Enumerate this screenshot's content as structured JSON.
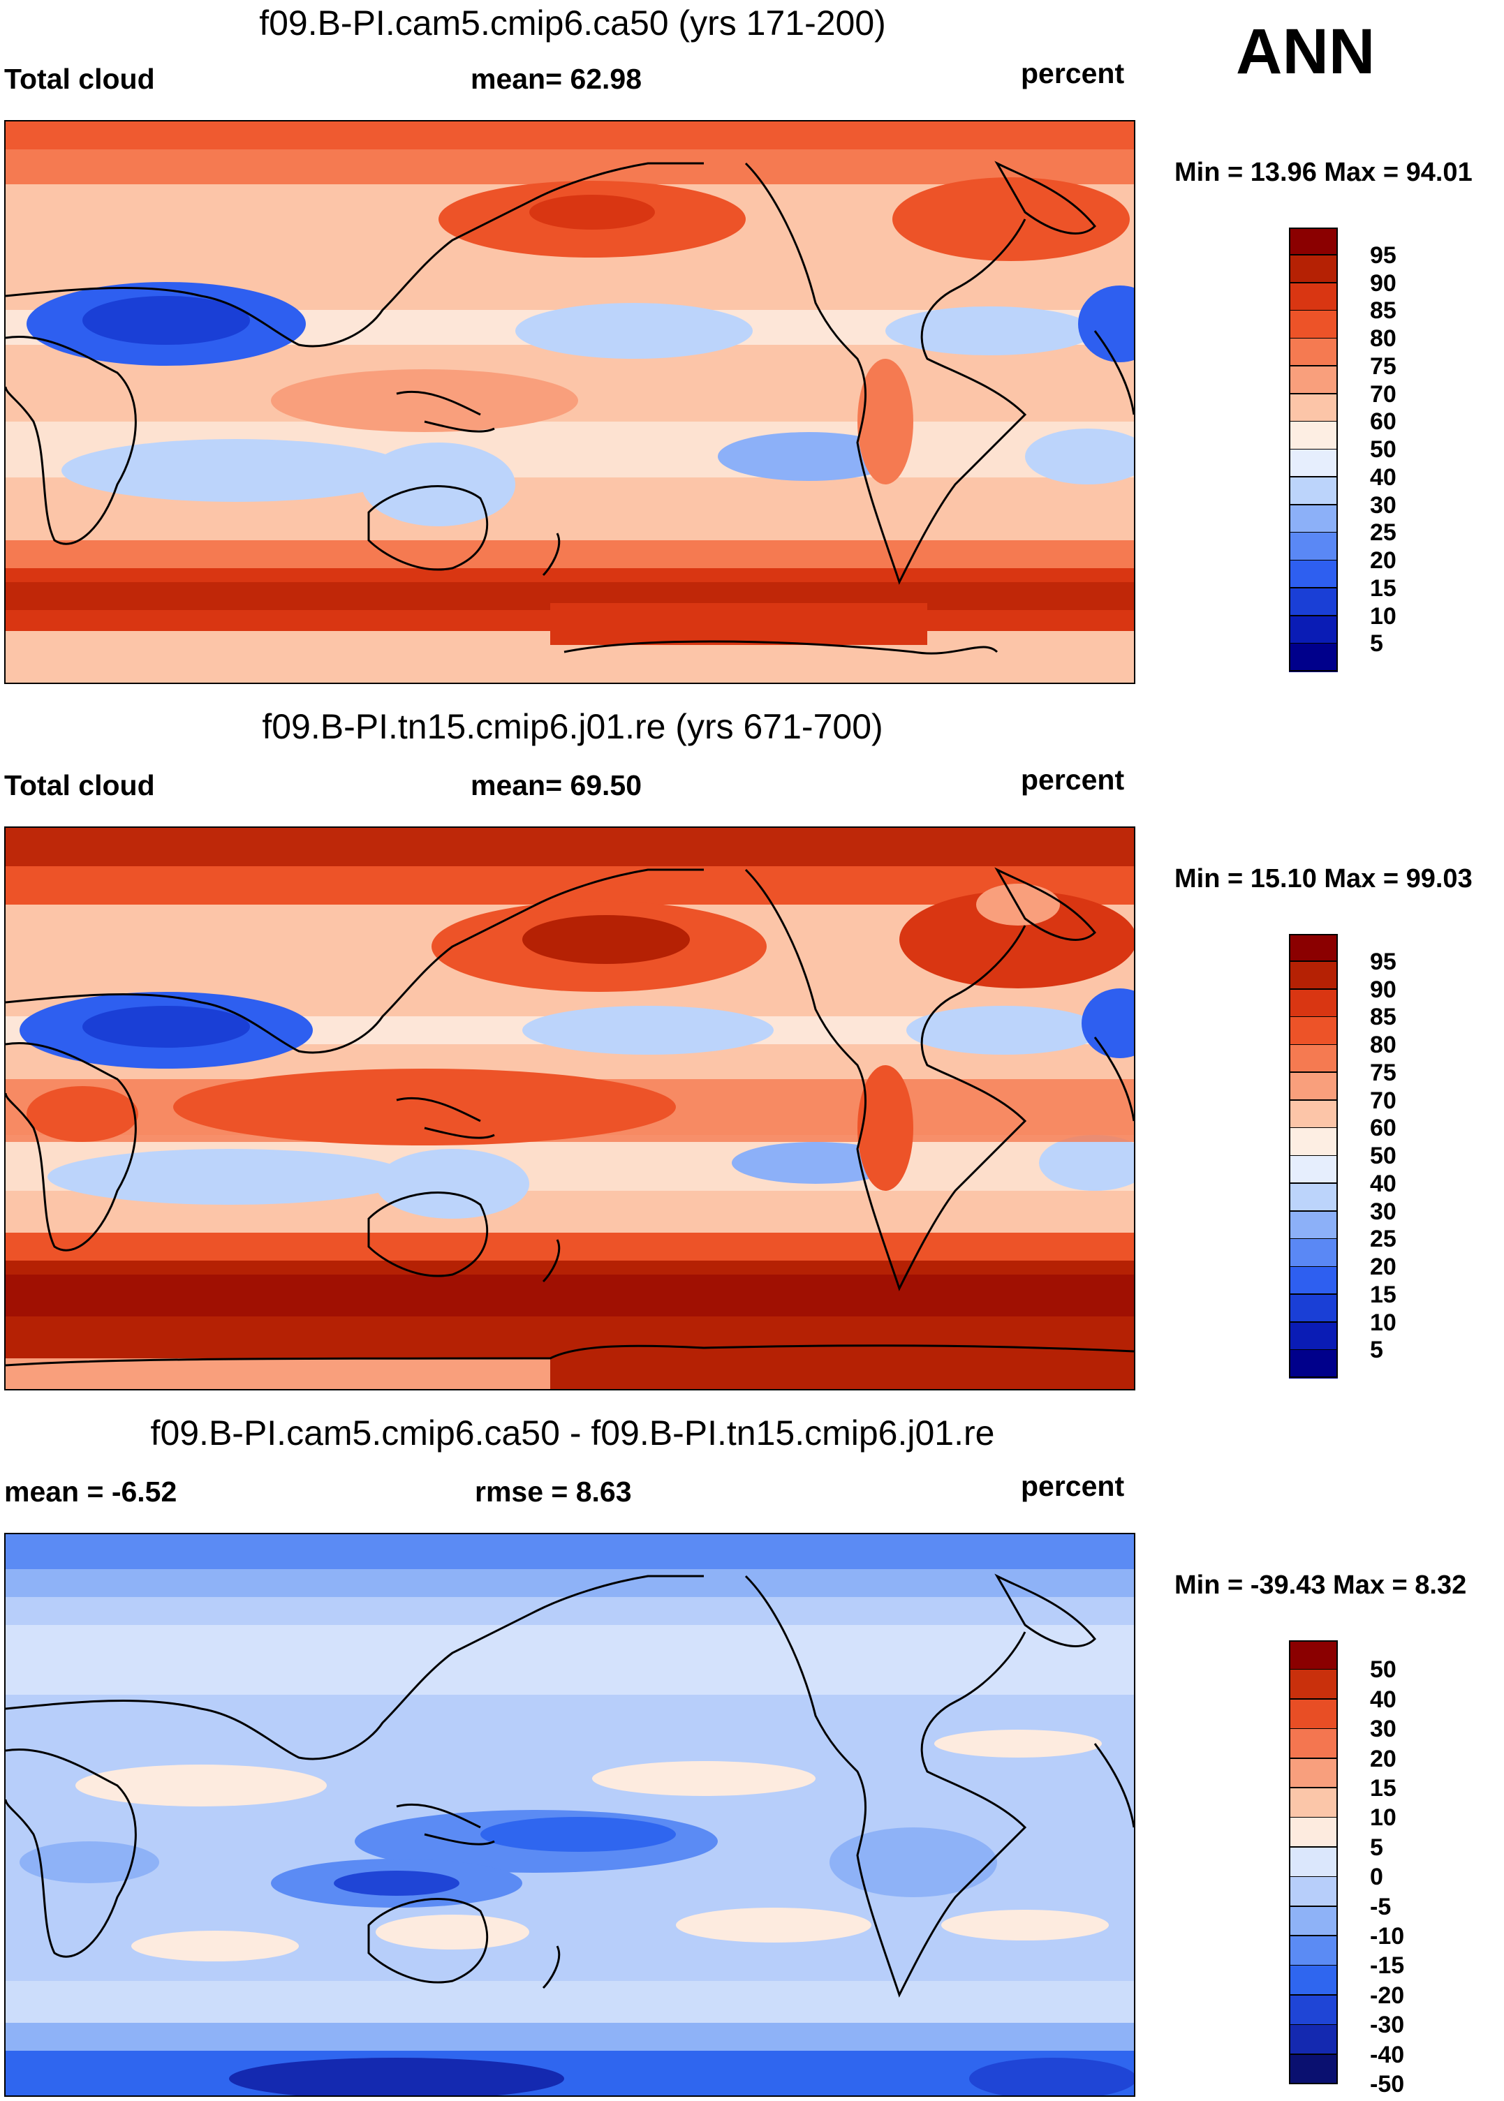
{
  "season": "ANN",
  "colors": {
    "abs": [
      "#00008b",
      "#0a1cb5",
      "#1a3fd6",
      "#2e5ff0",
      "#5a88f5",
      "#8cb0f8",
      "#bcd4fb",
      "#e6eefd",
      "#fdeee3",
      "#fcc5a8",
      "#f99f7c",
      "#f57a51",
      "#ed5328",
      "#d93612",
      "#b52104",
      "#8b0000"
    ],
    "diff": [
      "#0a1070",
      "#1429b0",
      "#1f45d6",
      "#2f66ef",
      "#5b8bf4",
      "#8eb2f7",
      "#b7cefa",
      "#dbe7fc",
      "#fdebdf",
      "#fbc6a9",
      "#f89f7d",
      "#f47650",
      "#e84e25",
      "#c9300c",
      "#8b0000"
    ]
  },
  "panels": [
    {
      "title": "f09.B-PI.cam5.cmip6.ca50 (yrs 171-200)",
      "left_label": "Total cloud",
      "center_label": "mean=  62.98",
      "right_label": "percent",
      "minmax": "Min =  13.96 Max =  94.01",
      "colorbar_labels": [
        "95",
        "90",
        "85",
        "80",
        "75",
        "70",
        "60",
        "50",
        "40",
        "30",
        "25",
        "20",
        "15",
        "10",
        "5"
      ]
    },
    {
      "title": "f09.B-PI.tn15.cmip6.j01.re (yrs 671-700)",
      "left_label": "Total cloud",
      "center_label": "mean=  69.50",
      "right_label": "percent",
      "minmax": "Min =  15.10 Max =  99.03",
      "colorbar_labels": [
        "95",
        "90",
        "85",
        "80",
        "75",
        "70",
        "60",
        "50",
        "40",
        "30",
        "25",
        "20",
        "15",
        "10",
        "5"
      ]
    },
    {
      "title": "f09.B-PI.cam5.cmip6.ca50 - f09.B-PI.tn15.cmip6.j01.re",
      "left_label": "mean =  -6.52",
      "center_label": "rmse =    8.63",
      "right_label": "percent",
      "minmax": "Min = -39.43 Max =    8.32",
      "colorbar_labels": [
        "50",
        "40",
        "30",
        "20",
        "15",
        "10",
        "5",
        "0",
        "-5",
        "-10",
        "-15",
        "-20",
        "-30",
        "-40",
        "-50"
      ]
    }
  ]
}
